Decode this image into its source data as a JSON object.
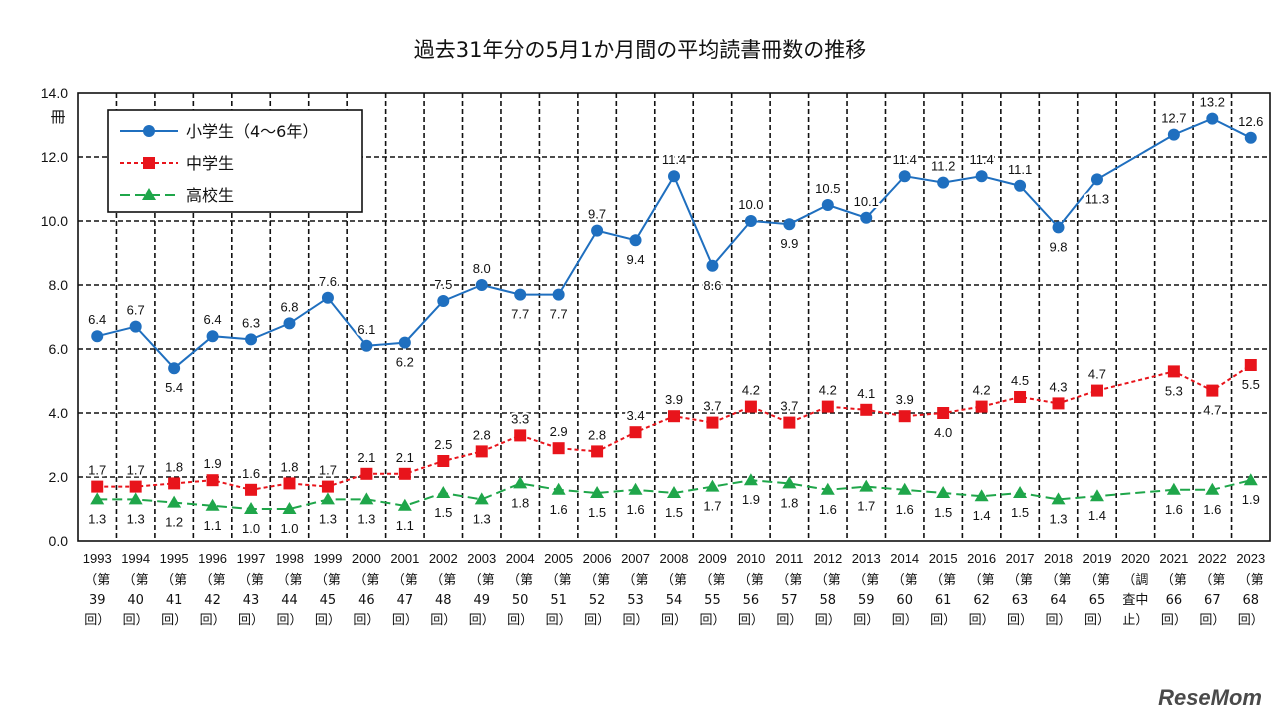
{
  "chart_data": {
    "type": "line",
    "title": "過去31年分の5月1か月間の平均読書冊数の推移",
    "ylabel": "冊",
    "ylim": [
      0,
      14
    ],
    "yticks": [
      "0.0",
      "2.0",
      "4.0",
      "6.0",
      "8.0",
      "10.0",
      "12.0",
      "14.0"
    ],
    "grid": true,
    "legend_position": "top-left",
    "categories": [
      "1993",
      "1994",
      "1995",
      "1996",
      "1997",
      "1998",
      "1999",
      "2000",
      "2001",
      "2002",
      "2003",
      "2004",
      "2005",
      "2006",
      "2007",
      "2008",
      "2009",
      "2010",
      "2011",
      "2012",
      "2013",
      "2014",
      "2015",
      "2016",
      "2017",
      "2018",
      "2019",
      "2020",
      "2021",
      "2022",
      "2023"
    ],
    "category_sublabels": [
      [
        "（第",
        "39",
        "回）"
      ],
      [
        "（第",
        "40",
        "回）"
      ],
      [
        "（第",
        "41",
        "回）"
      ],
      [
        "（第",
        "42",
        "回）"
      ],
      [
        "（第",
        "43",
        "回）"
      ],
      [
        "（第",
        "44",
        "回）"
      ],
      [
        "（第",
        "45",
        "回）"
      ],
      [
        "（第",
        "46",
        "回）"
      ],
      [
        "（第",
        "47",
        "回）"
      ],
      [
        "（第",
        "48",
        "回）"
      ],
      [
        "（第",
        "49",
        "回）"
      ],
      [
        "（第",
        "50",
        "回）"
      ],
      [
        "（第",
        "51",
        "回）"
      ],
      [
        "（第",
        "52",
        "回）"
      ],
      [
        "（第",
        "53",
        "回）"
      ],
      [
        "（第",
        "54",
        "回）"
      ],
      [
        "（第",
        "55",
        "回）"
      ],
      [
        "（第",
        "56",
        "回）"
      ],
      [
        "（第",
        "57",
        "回）"
      ],
      [
        "（第",
        "58",
        "回）"
      ],
      [
        "（第",
        "59",
        "回）"
      ],
      [
        "（第",
        "60",
        "回）"
      ],
      [
        "（第",
        "61",
        "回）"
      ],
      [
        "（第",
        "62",
        "回）"
      ],
      [
        "（第",
        "63",
        "回）"
      ],
      [
        "（第",
        "64",
        "回）"
      ],
      [
        "（第",
        "65",
        "回）"
      ],
      [
        "（調",
        "査中",
        "止）"
      ],
      [
        "（第",
        "66",
        "回）"
      ],
      [
        "（第",
        "67",
        "回）"
      ],
      [
        "（第",
        "68",
        "回）"
      ]
    ],
    "series": [
      {
        "name": "小学生（4～6年）",
        "color": "#1f6fbf",
        "marker": "circle",
        "line": "solid",
        "values": [
          6.4,
          6.7,
          5.4,
          6.4,
          6.3,
          6.8,
          7.6,
          6.1,
          6.2,
          7.5,
          8.0,
          7.7,
          7.7,
          9.7,
          9.4,
          11.4,
          8.6,
          10.0,
          9.9,
          10.5,
          10.1,
          11.4,
          11.2,
          11.4,
          11.1,
          9.8,
          11.3,
          null,
          12.7,
          13.2,
          12.6
        ]
      },
      {
        "name": "中学生",
        "color": "#e8141b",
        "marker": "square",
        "line": "dotted",
        "values": [
          1.7,
          1.7,
          1.8,
          1.9,
          1.6,
          1.8,
          1.7,
          2.1,
          2.1,
          2.5,
          2.8,
          3.3,
          2.9,
          2.8,
          3.4,
          3.9,
          3.7,
          4.2,
          3.7,
          4.2,
          4.1,
          3.9,
          4.0,
          4.2,
          4.5,
          4.3,
          4.7,
          null,
          5.3,
          4.7,
          5.5
        ]
      },
      {
        "name": "高校生",
        "color": "#1fa64a",
        "marker": "triangle",
        "line": "dashed",
        "values": [
          1.3,
          1.3,
          1.2,
          1.1,
          1.0,
          1.0,
          1.3,
          1.3,
          1.1,
          1.5,
          1.3,
          1.8,
          1.6,
          1.5,
          1.6,
          1.5,
          1.7,
          1.9,
          1.8,
          1.6,
          1.7,
          1.6,
          1.5,
          1.4,
          1.5,
          1.3,
          1.4,
          null,
          1.6,
          1.6,
          1.9
        ]
      }
    ]
  },
  "watermark": "ReseMom"
}
